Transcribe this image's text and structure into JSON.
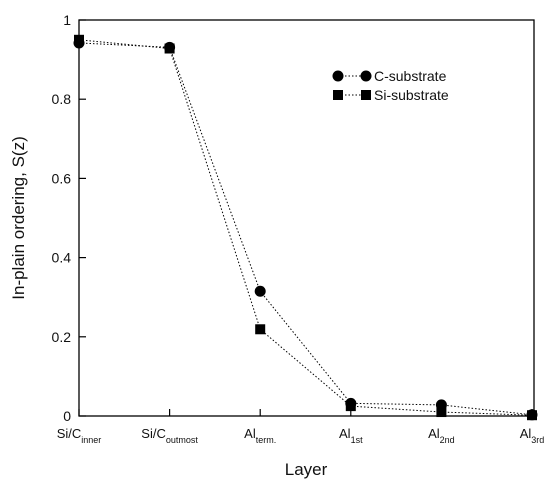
{
  "chart_data": {
    "type": "line",
    "title": "",
    "xlabel": "Layer",
    "ylabel": "In-plain ordering, S(z)",
    "categories": [
      {
        "base": "Si/C",
        "sub": "inner"
      },
      {
        "base": "Si/C",
        "sub": "outmost"
      },
      {
        "base": "Al",
        "sub": "term."
      },
      {
        "base": "Al",
        "sub": "1st"
      },
      {
        "base": "Al",
        "sub": "2nd"
      },
      {
        "base": "Al",
        "sub": "3rd"
      }
    ],
    "ylim": [
      0,
      1
    ],
    "yticks": [
      "0",
      "0.2",
      "0.4",
      "0.6",
      "0.8",
      "1"
    ],
    "grid": false,
    "legend_position": "top-right",
    "series": [
      {
        "name": "C-substrate",
        "marker": "circle",
        "line": "dotted",
        "color": "#000000",
        "values": [
          0.942,
          0.931,
          0.315,
          0.032,
          0.028,
          0.003
        ]
      },
      {
        "name": "Si-substrate",
        "marker": "square",
        "line": "dotted",
        "color": "#000000",
        "values": [
          0.95,
          0.928,
          0.219,
          0.025,
          0.01,
          0.002
        ]
      }
    ]
  }
}
